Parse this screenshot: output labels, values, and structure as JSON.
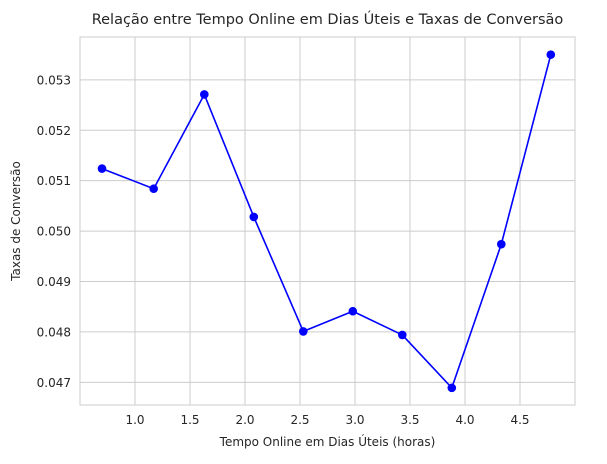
{
  "chart_data": {
    "type": "line",
    "title": "Relação entre Tempo Online em Dias Úteis e Taxas de Conversão",
    "xlabel": "Tempo Online em Dias Úteis (horas)",
    "ylabel": "Taxas de Conversão",
    "xlim": [
      0.5,
      5.0
    ],
    "ylim": [
      0.04655,
      0.05385
    ],
    "x_ticks": [
      1.0,
      1.5,
      2.0,
      2.5,
      3.0,
      3.5,
      4.0,
      4.5
    ],
    "x_tick_labels": [
      "1.0",
      "1.5",
      "2.0",
      "2.5",
      "3.0",
      "3.5",
      "4.0",
      "4.5"
    ],
    "y_ticks": [
      0.047,
      0.048,
      0.049,
      0.05,
      0.051,
      0.052,
      0.053
    ],
    "y_tick_labels": [
      "0.047",
      "0.048",
      "0.049",
      "0.050",
      "0.051",
      "0.052",
      "0.053"
    ],
    "grid": true,
    "series": [
      {
        "color": "#0000ff",
        "marker": "circle",
        "x": [
          0.7,
          1.17,
          1.63,
          2.08,
          2.53,
          2.98,
          3.43,
          3.88,
          4.33,
          4.78
        ],
        "y": [
          0.05124,
          0.05084,
          0.05271,
          0.05028,
          0.04801,
          0.04841,
          0.04794,
          0.04689,
          0.04974,
          0.0535
        ]
      }
    ]
  }
}
